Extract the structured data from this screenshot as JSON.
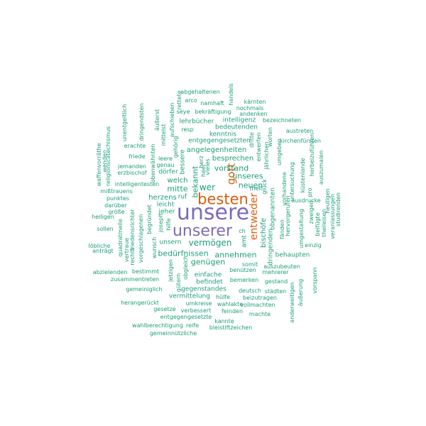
{
  "colors": {
    "large": "#7b6bb8",
    "medium": "#d95f0e",
    "small": "#1b9e77"
  },
  "words": [
    {
      "text": "unsere",
      "tier": "large"
    },
    {
      "text": "unserer",
      "tier": "large"
    },
    {
      "text": "besten",
      "tier": "medium"
    },
    {
      "text": "entweder",
      "tier": "medium"
    },
    {
      "text": "gott",
      "tier": "medium"
    },
    {
      "text": "vermögen",
      "tier": "small"
    },
    {
      "text": "bedürfnissen",
      "tier": "small"
    },
    {
      "text": "annehmen",
      "tier": "small"
    },
    {
      "text": "genügen",
      "tier": "small"
    },
    {
      "text": "mitte",
      "tier": "small"
    },
    {
      "text": "bekannt",
      "tier": "small"
    },
    {
      "text": "wer",
      "tier": "small"
    },
    {
      "text": "vorstand",
      "tier": "small"
    },
    {
      "text": "unseres",
      "tier": "small"
    },
    {
      "text": "neuen",
      "tier": "small"
    },
    {
      "text": "besprechen",
      "tier": "small"
    },
    {
      "text": "angelegenheiten",
      "tier": "small"
    },
    {
      "text": "entgegengesetzten",
      "tier": "small"
    },
    {
      "text": "lehrbücher",
      "tier": "small"
    },
    {
      "text": "kenntnis",
      "tier": "small"
    },
    {
      "text": "intelligenz",
      "tier": "small"
    },
    {
      "text": "bedeutenden",
      "tier": "small"
    },
    {
      "text": "nochmals",
      "tier": "small"
    },
    {
      "text": "andenken",
      "tier": "small"
    },
    {
      "text": "kärnten",
      "tier": "small"
    },
    {
      "text": "bezeichneten",
      "tier": "small"
    },
    {
      "text": "austreten",
      "tier": "small"
    },
    {
      "text": "kirchenfürsten",
      "tier": "small"
    },
    {
      "text": "seye",
      "tier": "small"
    },
    {
      "text": "bekräftigung",
      "tier": "small"
    },
    {
      "text": "namhaft",
      "tier": "small"
    },
    {
      "text": "arco",
      "tier": "small"
    },
    {
      "text": "abgehaltenen",
      "tier": "small"
    },
    {
      "text": "handels",
      "tier": "small"
    },
    {
      "text": "resp",
      "tier": "small"
    },
    {
      "text": "bischöfe",
      "tier": "small"
    },
    {
      "text": "dringenden",
      "tier": "small"
    },
    {
      "text": "obgenannten",
      "tier": "small"
    },
    {
      "text": "glück",
      "tier": "small"
    },
    {
      "text": "theil",
      "tier": "small"
    },
    {
      "text": "amt",
      "tier": "small"
    },
    {
      "text": "ch",
      "tier": "small"
    },
    {
      "text": "fänden",
      "tier": "small"
    },
    {
      "text": "hervorgerufen",
      "tier": "small"
    },
    {
      "text": "vorhandene",
      "tier": "small"
    },
    {
      "text": "untersuchung",
      "tier": "small"
    },
    {
      "text": "jährlichen",
      "tier": "small"
    },
    {
      "text": "entwerfen",
      "tier": "small"
    },
    {
      "text": "dritte",
      "tier": "small"
    },
    {
      "text": "umgeben",
      "tier": "small"
    },
    {
      "text": "worten",
      "tier": "small"
    },
    {
      "text": "küstenlande",
      "tier": "small"
    },
    {
      "text": "ausdrucke",
      "tier": "small"
    },
    {
      "text": "pro",
      "tier": "small"
    },
    {
      "text": "zweigen",
      "tier": "small"
    },
    {
      "text": "umgestaltung",
      "tier": "small"
    },
    {
      "text": "beifügte",
      "tier": "small"
    },
    {
      "text": "einzig",
      "tier": "small"
    },
    {
      "text": "auszumalen",
      "tier": "small"
    },
    {
      "text": "herbeizuführen",
      "tier": "small"
    },
    {
      "text": "heutigen",
      "tier": "small"
    },
    {
      "text": "theileisen",
      "tier": "small"
    },
    {
      "text": "veranlassungen",
      "tier": "small"
    },
    {
      "text": "studirenden",
      "tier": "small"
    },
    {
      "text": "behaupten",
      "tier": "small"
    },
    {
      "text": "auszubeuten",
      "tier": "small"
    },
    {
      "text": "mehrerer",
      "tier": "small"
    },
    {
      "text": "somit",
      "tier": "small"
    },
    {
      "text": "benützen",
      "tier": "small"
    },
    {
      "text": "gestand",
      "tier": "small"
    },
    {
      "text": "deutsch",
      "tier": "small"
    },
    {
      "text": "städten",
      "tier": "small"
    },
    {
      "text": "beizutragen",
      "tier": "small"
    },
    {
      "text": "vollmachten",
      "tier": "small"
    },
    {
      "text": "machte",
      "tier": "small"
    },
    {
      "text": "äußerung",
      "tier": "small"
    },
    {
      "text": "anderweitigen",
      "tier": "small"
    },
    {
      "text": "vorspann",
      "tier": "small"
    },
    {
      "text": "bemerken",
      "tier": "small"
    },
    {
      "text": "hülfe",
      "tier": "small"
    },
    {
      "text": "wahlakte",
      "tier": "small"
    },
    {
      "text": "feinden",
      "tier": "small"
    },
    {
      "text": "kannte",
      "tier": "small"
    },
    {
      "text": "bleistiftzeichen",
      "tier": "small"
    },
    {
      "text": "einfache",
      "tier": "small"
    },
    {
      "text": "befindet",
      "tier": "small"
    },
    {
      "text": "gegenstandes",
      "tier": "small"
    },
    {
      "text": "vermittelung",
      "tier": "small"
    },
    {
      "text": "umkreise",
      "tier": "small"
    },
    {
      "text": "verbessert",
      "tier": "small"
    },
    {
      "text": "gesetze",
      "tier": "small"
    },
    {
      "text": "entgegengesetzte",
      "tier": "small"
    },
    {
      "text": "reife",
      "tier": "small"
    },
    {
      "text": "wahlberechtigung",
      "tier": "small"
    },
    {
      "text": "gemeinnützliche",
      "tier": "small"
    },
    {
      "text": "herangerückt",
      "tier": "small"
    },
    {
      "text": "gemeiniglich",
      "tier": "small"
    },
    {
      "text": "zusammentreten",
      "tier": "small"
    },
    {
      "text": "bestimmt",
      "tier": "small"
    },
    {
      "text": "abzielenden",
      "tier": "small"
    },
    {
      "text": "anträgt",
      "tier": "small"
    },
    {
      "text": "löbliche",
      "tier": "small"
    },
    {
      "text": "heiligen",
      "tier": "small"
    },
    {
      "text": "sollen",
      "tier": "small"
    },
    {
      "text": "größe",
      "tier": "small"
    },
    {
      "text": "darüber",
      "tier": "small"
    },
    {
      "text": "punktes",
      "tier": "small"
    },
    {
      "text": "mißtrauens",
      "tier": "small"
    },
    {
      "text": "intelligentesten",
      "tier": "small"
    },
    {
      "text": "erzbischof",
      "tier": "small"
    },
    {
      "text": "jemanden",
      "tier": "small"
    },
    {
      "text": "friede",
      "tier": "small"
    },
    {
      "text": "erachte",
      "tier": "small"
    },
    {
      "text": "wenden",
      "tier": "small"
    },
    {
      "text": "waffenvorräthe",
      "tier": "small"
    },
    {
      "text": "religionscatechismus",
      "tier": "small"
    },
    {
      "text": "unentgeltlich",
      "tier": "small"
    },
    {
      "text": "dringendsten",
      "tier": "small"
    },
    {
      "text": "äußerst",
      "tier": "small"
    },
    {
      "text": "mittelst",
      "tier": "small"
    },
    {
      "text": "aufschieben",
      "tier": "small"
    },
    {
      "text": "rettete",
      "tier": "small"
    },
    {
      "text": "gehörig",
      "tier": "small"
    },
    {
      "text": "leere",
      "tier": "small"
    },
    {
      "text": "obenwähnten",
      "tier": "small"
    },
    {
      "text": "genau",
      "tier": "small"
    },
    {
      "text": "dörfer",
      "tier": "small"
    },
    {
      "text": "bessere",
      "tier": "small"
    },
    {
      "text": "herz",
      "tier": "small"
    },
    {
      "text": "heer",
      "tier": "small"
    },
    {
      "text": "vieles",
      "tier": "small"
    },
    {
      "text": "welch",
      "tier": "small"
    },
    {
      "text": "herzens",
      "tier": "small"
    },
    {
      "text": "leicht",
      "tier": "small"
    },
    {
      "text": "jeher",
      "tier": "small"
    },
    {
      "text": "ruf",
      "tier": "small"
    },
    {
      "text": "begründet",
      "tier": "small"
    },
    {
      "text": "friedensrichter",
      "tier": "small"
    },
    {
      "text": "quadratmeile",
      "tier": "small"
    },
    {
      "text": "vertraue",
      "tier": "small"
    },
    {
      "text": "rechte",
      "tier": "small"
    },
    {
      "text": "vorgeschlagenen",
      "tier": "small"
    },
    {
      "text": "wunsch",
      "tier": "small"
    },
    {
      "text": "joseph",
      "tier": "small"
    },
    {
      "text": "hilfe",
      "tier": "small"
    },
    {
      "text": "unsern",
      "tier": "small"
    },
    {
      "text": "jetzigen",
      "tier": "small"
    },
    {
      "text": "gütern",
      "tier": "small"
    },
    {
      "text": "obgleich",
      "tier": "small"
    }
  ]
}
